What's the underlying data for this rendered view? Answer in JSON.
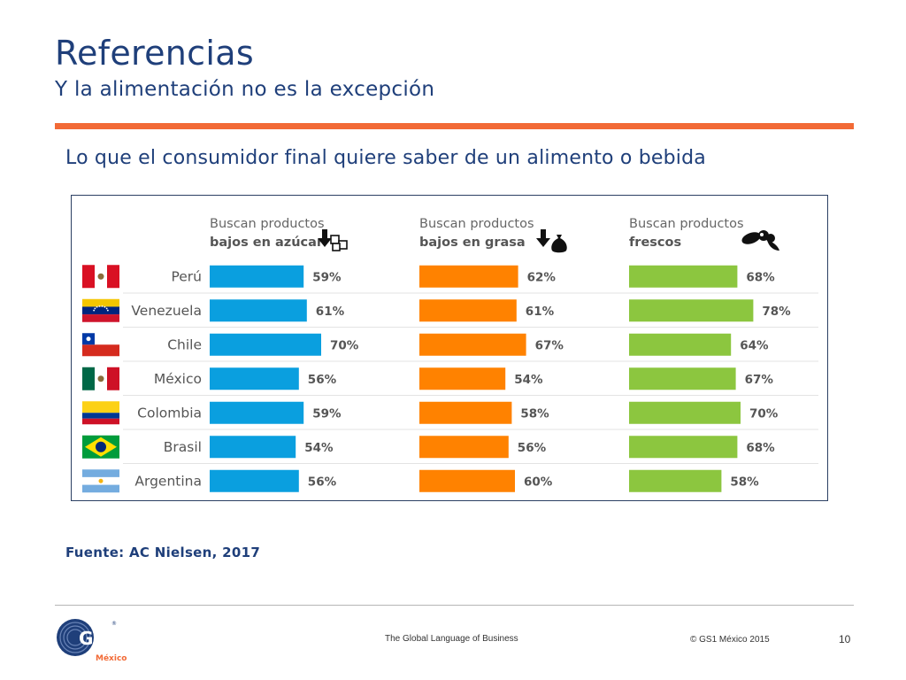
{
  "header": {
    "title": "Referencias",
    "subtitle": "Y la alimentación no es la excepción"
  },
  "section_heading": "Lo que el consumidor final quiere saber de un alimento o bebida",
  "chart_data": {
    "type": "bar",
    "orientation": "horizontal",
    "categories": [
      "Perú",
      "Venezuela",
      "Chile",
      "México",
      "Colombia",
      "Brasil",
      "Argentina"
    ],
    "series": [
      {
        "line1": "Buscan productos",
        "line2": "bajos en azúcar",
        "color": "#0a9fdf",
        "icon": "sugar-cubes-icon",
        "values": [
          59,
          61,
          70,
          56,
          59,
          54,
          56
        ]
      },
      {
        "line1": "Buscan productos",
        "line2": "bajos en grasa",
        "color": "#ff8200",
        "icon": "fat-bag-icon",
        "values": [
          62,
          61,
          67,
          54,
          58,
          56,
          60
        ]
      },
      {
        "line1": "Buscan productos",
        "line2": "frescos",
        "color": "#8cc63f",
        "icon": "fresh-fruit-icon",
        "values": [
          68,
          78,
          64,
          67,
          70,
          68,
          58
        ]
      }
    ],
    "value_suffix": "%",
    "flags": [
      "peru-flag-icon",
      "venezuela-flag-icon",
      "chile-flag-icon",
      "mexico-flag-icon",
      "colombia-flag-icon",
      "brazil-flag-icon",
      "argentina-flag-icon"
    ]
  },
  "source": "Fuente: AC Nielsen, 2017",
  "footer": {
    "logo_text": "GS1",
    "logo_sub": "México",
    "logo_icon": "gs1-logo-icon",
    "tagline": "The Global Language of Business",
    "copyright": "© GS1 México 2015",
    "page_number": "10"
  }
}
